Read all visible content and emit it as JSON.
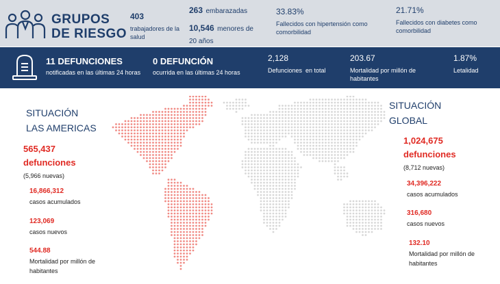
{
  "header": {
    "title_line1": "GRUPOS",
    "title_line2": "DE RIESGO",
    "health_workers": {
      "value": "403",
      "label": "trabajadores de la salud"
    },
    "pregnant": {
      "value": "263",
      "label": "embarazadas"
    },
    "minors": {
      "value": "10,546",
      "label": "menores de 20 años"
    },
    "hypertension": {
      "value": "33.83%",
      "label": "Fallecidos con hipertensión como comorbilidad"
    },
    "diabetes": {
      "value": "21.71%",
      "label": "Fallecidos con diabetes como comorbilidad"
    }
  },
  "deaths_band": {
    "deaths_24h": {
      "value": "11 DEFUNCIONES",
      "label": "notificadas en las últimas 24 horas"
    },
    "deaths_occurred": {
      "value": "0 DEFUNCIÓN",
      "label": "ocurrida en las últimas 24 horas"
    },
    "total": {
      "value": "2,128",
      "label": "Defunciones  en total"
    },
    "mortality": {
      "value": "203.67",
      "label": "Mortalidad por millón de habitantes"
    },
    "lethality": {
      "value": "1.87%",
      "label": "Letalidad"
    }
  },
  "americas": {
    "title_line1": "SITUACIÓN",
    "title_line2": "LAS AMERICAS",
    "deaths_value": "565,437",
    "deaths_label": "defunciones",
    "deaths_new": "(5,966 nuevas)",
    "cumulative_value": "16,866,312",
    "cumulative_label": "casos acumulados",
    "new_value": "123,069",
    "new_label": "casos nuevos",
    "mortality_value": "544.88",
    "mortality_label": "Mortalidad por millón de habitantes"
  },
  "global": {
    "title_line1": "SITUACIÓN",
    "title_line2": "GLOBAL",
    "deaths_value": "1,024,675",
    "deaths_label": "defunciones",
    "deaths_new": "(8,712 nuevas)",
    "cumulative_value": "34,396,222",
    "cumulative_label": "casos acumulados",
    "new_value": "316,680",
    "new_label": "casos nuevos",
    "mortality_value": "132.10",
    "mortality_label": "Mortalidad por millón de habitantes"
  },
  "icons": {
    "group": "people-group-icon",
    "tombstone": "tombstone-icon",
    "map": "world-map-dotted"
  },
  "colors": {
    "navy": "#1f3e6b",
    "red": "#e02a23",
    "map_gray": "#d7d7d7",
    "map_red": "#f08a84"
  }
}
